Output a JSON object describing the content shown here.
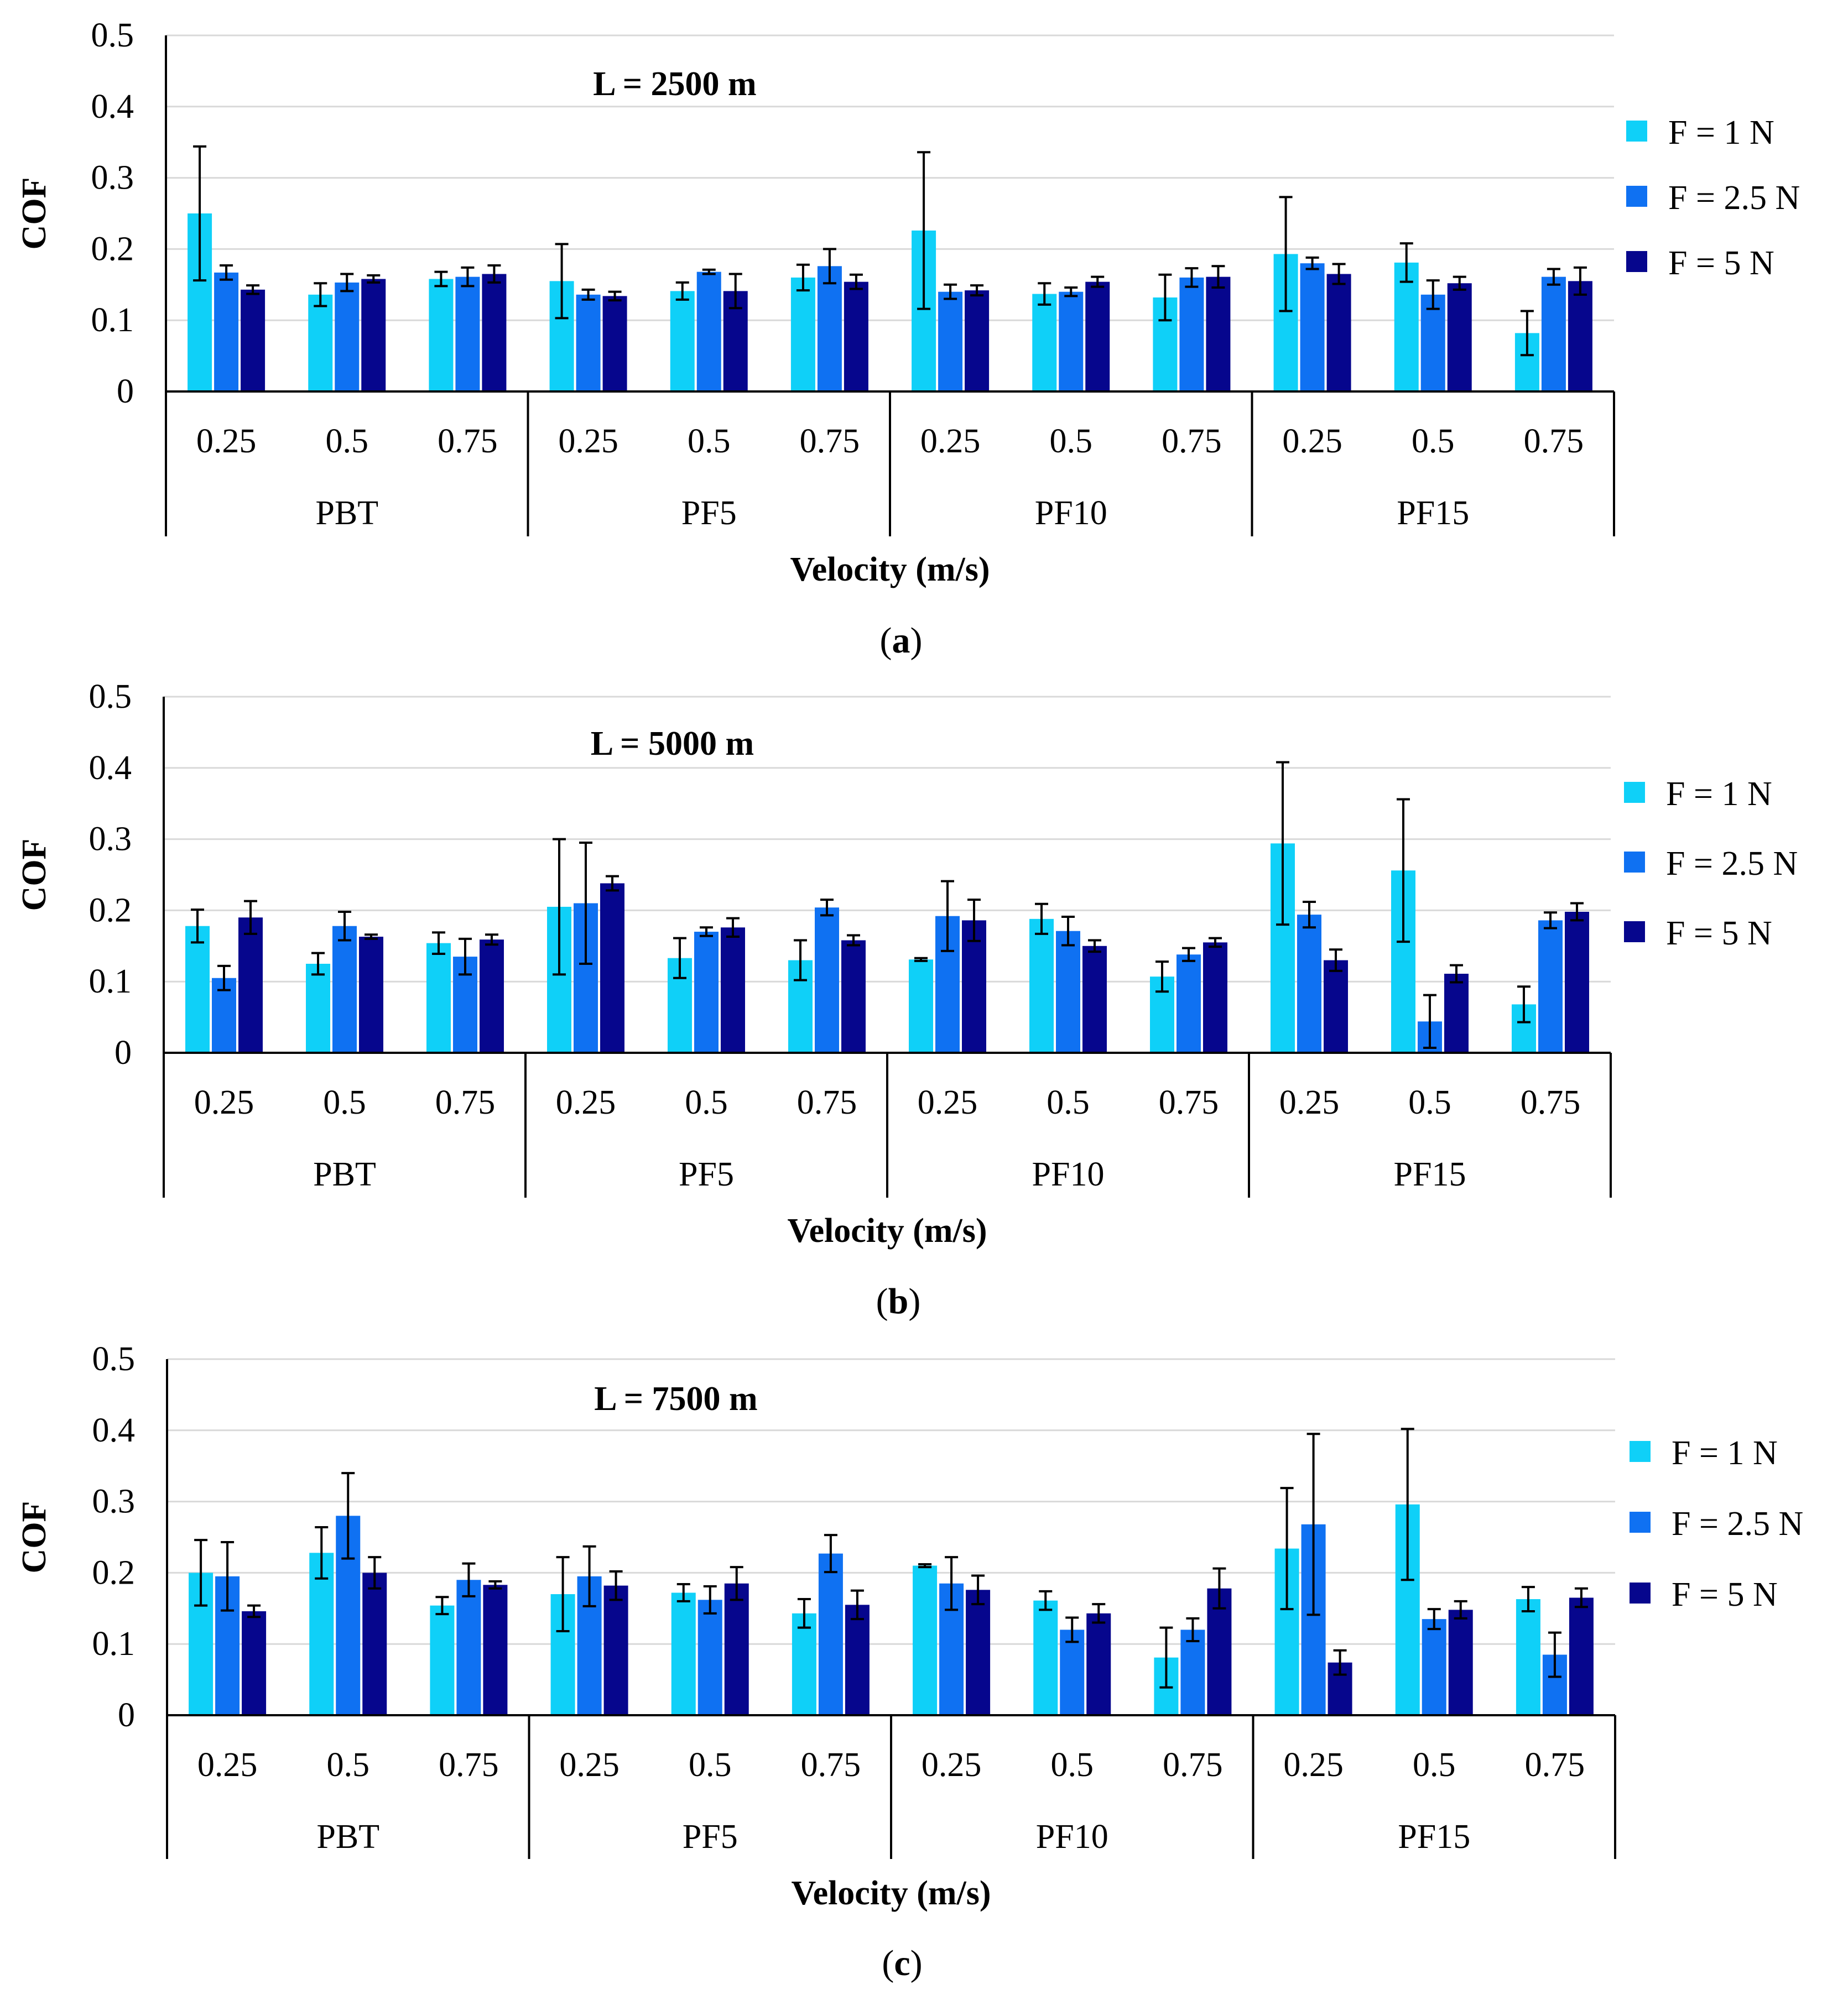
{
  "legend_series": [
    "F = 1 N",
    "F = 2.5 N",
    "F = 5 N"
  ],
  "colors": [
    "#0FD0F8",
    "#0F71F2",
    "#06068D"
  ],
  "chart_data": [
    {
      "type": "bar",
      "title": "L = 2500 m",
      "caption": "a",
      "ylabel": "COF",
      "xlabel": "Velocity (m/s)",
      "ylim": [
        0,
        0.5
      ],
      "yticks": [
        "0",
        "0.1",
        "0.2",
        "0.3",
        "0.4",
        "0.5"
      ],
      "grid": true,
      "legend_position": "right",
      "groups": [
        "PBT",
        "PF5",
        "PF10",
        "PF15"
      ],
      "categories": [
        "0.25",
        "0.5",
        "0.75",
        "0.25",
        "0.5",
        "0.75",
        "0.25",
        "0.5",
        "0.75",
        "0.25",
        "0.5",
        "0.75"
      ],
      "series": [
        {
          "name": "F = 1 N",
          "values": [
            0.25,
            0.136,
            0.158,
            0.155,
            0.141,
            0.16,
            0.226,
            0.137,
            0.132,
            0.193,
            0.181,
            0.082
          ],
          "errors": [
            0.094,
            0.016,
            0.01,
            0.052,
            0.012,
            0.018,
            0.11,
            0.015,
            0.032,
            0.08,
            0.027,
            0.031
          ]
        },
        {
          "name": "F = 2.5 N",
          "values": [
            0.167,
            0.153,
            0.161,
            0.136,
            0.168,
            0.176,
            0.14,
            0.14,
            0.16,
            0.18,
            0.136,
            0.161
          ]
        },
        {
          "name": "F = 5 N",
          "values": [
            0.143,
            0.158,
            0.165,
            0.134,
            0.141,
            0.154,
            0.142,
            0.154,
            0.161,
            0.165,
            0.152,
            0.155
          ],
          "errors": [
            0.006,
            0.005,
            0.012,
            0.006,
            0.024,
            0.01,
            0.007,
            0.007,
            0.015,
            0.014,
            0.009,
            0.019
          ]
        }
      ],
      "errors_2_5": [
        0.01,
        0.012,
        0.013,
        0.007,
        0.003,
        0.024,
        0.01,
        0.006,
        0.013,
        0.008,
        0.02,
        0.011
      ]
    },
    {
      "type": "bar",
      "title": "L = 5000 m",
      "caption": "b",
      "ylabel": "COF",
      "xlabel": "Velocity (m/s)",
      "ylim": [
        0,
        0.5
      ],
      "yticks": [
        "0",
        "0.1",
        "0.2",
        "0.3",
        "0.4",
        "0.5"
      ],
      "grid": true,
      "legend_position": "right",
      "groups": [
        "PBT",
        "PF5",
        "PF10",
        "PF15"
      ],
      "categories": [
        "0.25",
        "0.5",
        "0.75",
        "0.25",
        "0.5",
        "0.75",
        "0.25",
        "0.5",
        "0.75",
        "0.25",
        "0.5",
        "0.75"
      ],
      "series": [
        {
          "name": "F = 1 N",
          "values": [
            0.178,
            0.125,
            0.154,
            0.205,
            0.133,
            0.13,
            0.131,
            0.188,
            0.107,
            0.294,
            0.256,
            0.068
          ],
          "errors": [
            0.023,
            0.015,
            0.015,
            0.095,
            0.028,
            0.028,
            0.002,
            0.021,
            0.021,
            0.114,
            0.1,
            0.025
          ]
        },
        {
          "name": "F = 2.5 N",
          "values": [
            0.105,
            0.178,
            0.135,
            0.21,
            0.17,
            0.204,
            0.192,
            0.171,
            0.138,
            0.194,
            0.044,
            0.186
          ]
        },
        {
          "name": "F = 5 N",
          "values": [
            0.19,
            0.163,
            0.159,
            0.238,
            0.176,
            0.158,
            0.186,
            0.15,
            0.155,
            0.13,
            0.111,
            0.198
          ],
          "errors": [
            0.023,
            0.003,
            0.007,
            0.01,
            0.013,
            0.007,
            0.029,
            0.008,
            0.006,
            0.015,
            0.012,
            0.012
          ]
        }
      ],
      "errors_2_5": [
        0.017,
        0.02,
        0.025,
        0.085,
        0.006,
        0.011,
        0.049,
        0.02,
        0.009,
        0.018,
        0.037,
        0.011
      ]
    },
    {
      "type": "bar",
      "title": "L = 7500 m",
      "caption": "c",
      "ylabel": "COF",
      "xlabel": "Velocity (m/s)",
      "ylim": [
        0,
        0.5
      ],
      "yticks": [
        "0",
        "0.1",
        "0.2",
        "0.3",
        "0.4",
        "0.5"
      ],
      "grid": true,
      "legend_position": "right",
      "groups": [
        "PBT",
        "PF5",
        "PF10",
        "PF15"
      ],
      "categories": [
        "0.25",
        "0.5",
        "0.75",
        "0.25",
        "0.5",
        "0.75",
        "0.25",
        "0.5",
        "0.75",
        "0.25",
        "0.5",
        "0.75"
      ],
      "series": [
        {
          "name": "F = 1 N",
          "values": [
            0.2,
            0.228,
            0.154,
            0.17,
            0.172,
            0.143,
            0.21,
            0.161,
            0.081,
            0.234,
            0.296,
            0.163
          ],
          "errors": [
            0.046,
            0.036,
            0.012,
            0.052,
            0.012,
            0.02,
            0.002,
            0.013,
            0.042,
            0.085,
            0.106,
            0.017
          ]
        },
        {
          "name": "F = 2.5 N",
          "values": [
            0.195,
            0.28,
            0.19,
            0.195,
            0.162,
            0.227,
            0.185,
            0.12,
            0.12,
            0.268,
            0.135,
            0.085
          ]
        },
        {
          "name": "F = 5 N",
          "values": [
            0.146,
            0.2,
            0.183,
            0.182,
            0.185,
            0.155,
            0.176,
            0.143,
            0.178,
            0.074,
            0.148,
            0.165
          ],
          "errors": [
            0.008,
            0.022,
            0.005,
            0.02,
            0.023,
            0.02,
            0.02,
            0.013,
            0.028,
            0.017,
            0.012,
            0.013
          ]
        }
      ],
      "errors_2_5": [
        0.048,
        0.06,
        0.023,
        0.042,
        0.019,
        0.026,
        0.037,
        0.017,
        0.016,
        0.127,
        0.014,
        0.031
      ]
    }
  ]
}
